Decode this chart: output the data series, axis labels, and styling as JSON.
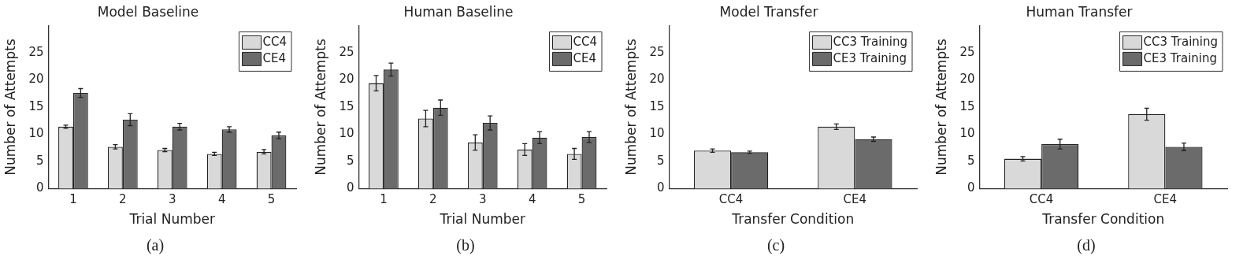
{
  "chart_data": [
    {
      "type": "bar",
      "title": "Model Baseline",
      "xlabel": "Trial Number",
      "ylabel": "Number of Attempts",
      "categories": [
        "1",
        "2",
        "3",
        "4",
        "5"
      ],
      "ylim": [
        0,
        30
      ],
      "yticks": [
        0,
        5,
        10,
        15,
        20,
        25
      ],
      "grid": false,
      "legend": "top right",
      "annotations": [
        "(a)"
      ],
      "series": [
        {
          "name": "CC4",
          "color": "#d9d9d9",
          "values": [
            11.4,
            7.7,
            7.1,
            6.4,
            6.8
          ],
          "errors": [
            0.3,
            0.4,
            0.3,
            0.3,
            0.4
          ]
        },
        {
          "name": "CE4",
          "color": "#6b6b6b",
          "values": [
            17.6,
            12.7,
            11.4,
            10.9,
            9.8
          ],
          "errors": [
            0.8,
            1.1,
            0.6,
            0.5,
            0.6
          ]
        }
      ]
    },
    {
      "type": "bar",
      "title": "Human Baseline",
      "xlabel": "Trial Number",
      "ylabel": "Number of Attempts",
      "categories": [
        "1",
        "2",
        "3",
        "4",
        "5"
      ],
      "ylim": [
        0,
        30
      ],
      "yticks": [
        0,
        5,
        10,
        15,
        20,
        25
      ],
      "grid": false,
      "legend": "top right",
      "annotations": [
        "(b)"
      ],
      "series": [
        {
          "name": "CC4",
          "color": "#d9d9d9",
          "values": [
            19.4,
            12.9,
            8.5,
            7.2,
            6.4
          ],
          "errors": [
            1.4,
            1.5,
            1.4,
            1.1,
            1.0
          ]
        },
        {
          "name": "CE4",
          "color": "#6b6b6b",
          "values": [
            21.9,
            14.9,
            12.1,
            9.4,
            9.5
          ],
          "errors": [
            1.2,
            1.4,
            1.3,
            1.1,
            1.0
          ]
        }
      ]
    },
    {
      "type": "bar",
      "title": "Model Transfer",
      "xlabel": "Transfer Condition",
      "ylabel": "Number of Attempts",
      "categories": [
        "CC4",
        "CE4"
      ],
      "ylim": [
        0,
        30
      ],
      "yticks": [
        0,
        5,
        10,
        15,
        20,
        25
      ],
      "grid": false,
      "legend": "top right",
      "annotations": [
        "(c)"
      ],
      "series": [
        {
          "name": "CC3 Training",
          "color": "#d9d9d9",
          "values": [
            7.0,
            11.4
          ],
          "errors": [
            0.3,
            0.5
          ]
        },
        {
          "name": "CE3 Training",
          "color": "#6b6b6b",
          "values": [
            6.7,
            9.1
          ],
          "errors": [
            0.2,
            0.4
          ]
        }
      ]
    },
    {
      "type": "bar",
      "title": "Human Transfer",
      "xlabel": "Transfer Condition",
      "ylabel": "Number of Attempts",
      "categories": [
        "CC4",
        "CE4"
      ],
      "ylim": [
        0,
        30
      ],
      "yticks": [
        0,
        5,
        10,
        15,
        20,
        25
      ],
      "grid": false,
      "legend": "top right",
      "annotations": [
        "(d)"
      ],
      "series": [
        {
          "name": "CC3 Training",
          "color": "#d9d9d9",
          "values": [
            5.5,
            13.7
          ],
          "errors": [
            0.4,
            1.1
          ]
        },
        {
          "name": "CE3 Training",
          "color": "#6b6b6b",
          "values": [
            8.2,
            7.7
          ],
          "errors": [
            0.9,
            0.7
          ]
        }
      ]
    }
  ]
}
